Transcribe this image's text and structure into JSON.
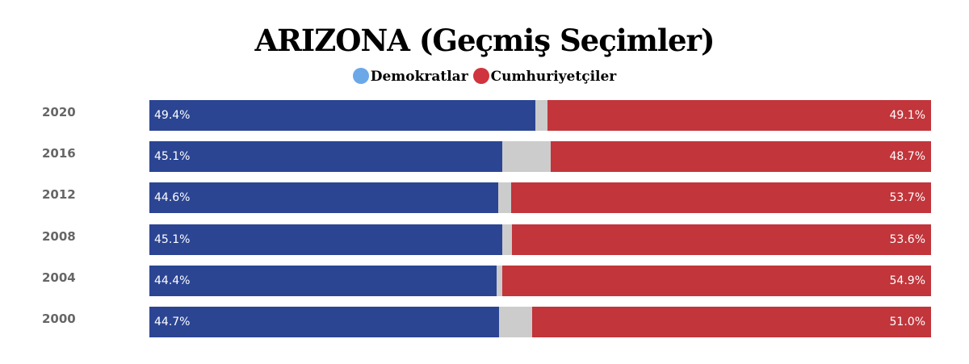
{
  "chart_data": {
    "type": "bar",
    "stacked": "horizontal-100",
    "title": "ARIZONA (Geçmiş Seçimler)",
    "legend": [
      {
        "name": "Demokratlar",
        "color": "#6aa8e8"
      },
      {
        "name": "Cumhuriyetçiler",
        "color": "#d0343e"
      }
    ],
    "categories": [
      "2020",
      "2016",
      "2012",
      "2008",
      "2004",
      "2000"
    ],
    "series": [
      {
        "name": "Demokratlar",
        "color": "#2b4593",
        "values": [
          49.4,
          45.1,
          44.6,
          45.1,
          44.4,
          44.7
        ],
        "labels": [
          "49.4%",
          "45.1%",
          "44.6%",
          "45.1%",
          "44.4%",
          "44.7%"
        ]
      },
      {
        "name": "Cumhuriyetçiler",
        "color": "#c1353b",
        "values": [
          49.1,
          48.7,
          53.7,
          53.6,
          54.9,
          51.0
        ],
        "labels": [
          "49.1%",
          "48.7%",
          "53.7%",
          "53.6%",
          "54.9%",
          "51.0%"
        ]
      }
    ],
    "other_color": "#cccccc",
    "xlim": [
      0,
      100
    ]
  }
}
